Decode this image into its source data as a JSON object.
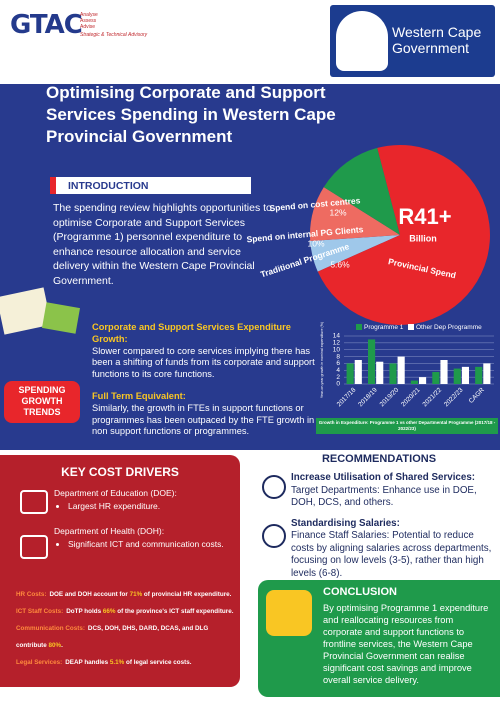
{
  "header": {
    "logo": "GTAC",
    "logo_tagline": [
      "Analyse",
      "Assess",
      "Advise"
    ],
    "logo_subtitle": "Strategic & Technical Advisory",
    "government": "Western Cape Government"
  },
  "title": "Optimising Corporate and Support Services Spending in Western Cape Provincial Government",
  "introduction": {
    "heading": "INTRODUCTION",
    "text": "The spending review highlights opportunities to optimise Corporate and Support Services (Programme 1) personnel expenditure to enhance resource allocation and service delivery within the Western Cape Provincial Government."
  },
  "pie_chart": {
    "type": "pie",
    "center_value": "R41+",
    "center_unit": "Billion",
    "categories": [
      "Traditional Programme",
      "Spend on internal PG Clients",
      "Spend on cost centres",
      "Provincial Spend"
    ],
    "values": [
      5.6,
      10,
      12,
      72.4
    ],
    "value_labels": [
      "5.6%",
      "10%",
      "12%",
      null
    ],
    "colors": [
      "#9fc8ea",
      "#ee6b61",
      "#1f9a4b",
      "#e8262b"
    ]
  },
  "spending_trends": {
    "badge": "SPENDING GROWTH TRENDS",
    "items": [
      {
        "heading": "Corporate and Support Services Expenditure Growth:",
        "text": "Slower compared to core services implying there has been a shifting of funds from its corporate and support functions to its core functions."
      },
      {
        "heading": "Full Term Equivalent:",
        "text": "Similarly, the growth in FTEs in support functions or programmes has been outpaced by the FTE growth in non support functions or programmes."
      }
    ]
  },
  "bar_chart": {
    "type": "bar",
    "y_label": "Year-on-year growth in nominal expenditure (%)",
    "caption": "Growth in Expenditure: Programme 1 vs other Departmental Programme (2017/18 - 2022/23)",
    "categories": [
      "2017/18",
      "2018/19",
      "2019/20",
      "2020/21",
      "2021/22",
      "2022/23",
      "CAGR"
    ],
    "series": [
      {
        "name": "Programme 1",
        "color": "#1f9a4b",
        "values": [
          6,
          13,
          6,
          1,
          3.5,
          4.5,
          5
        ]
      },
      {
        "name": "Other Dep Programme",
        "color": "#ffffff",
        "values": [
          7,
          6.5,
          8,
          2,
          7,
          5,
          6
        ]
      }
    ],
    "ylim": [
      0,
      14
    ],
    "yticks": [
      0,
      2,
      4,
      6,
      8,
      10,
      12,
      14
    ],
    "grid": true
  },
  "key_cost_drivers": {
    "heading": "KEY COST DRIVERS",
    "departments": [
      {
        "name": "Department of Education (DOE):",
        "bullets": [
          "Largest HR expenditure."
        ]
      },
      {
        "name": "Department of Health (DOH):",
        "bullets": [
          "Significant ICT and communication costs."
        ]
      }
    ],
    "notes": [
      {
        "label": "HR Costs:",
        "parts": [
          "DOE and DOH account for ",
          "71%",
          " of provincial HR expenditure."
        ]
      },
      {
        "label": "ICT Staff Costs:",
        "parts": [
          "DoTP holds ",
          "66%",
          " of the province's ICT staff expenditure."
        ]
      },
      {
        "label": "Communication Costs:",
        "parts": [
          "DCS, DOH, DHS, DARD, DCAS, and DLG contribute ",
          "80%",
          "."
        ]
      },
      {
        "label": "Legal Services:",
        "parts": [
          "DEAP handles ",
          "5.1%",
          " of legal service costs."
        ]
      }
    ]
  },
  "recommendations": {
    "heading": "RECOMMENDATIONS",
    "items": [
      {
        "heading": "Increase Utilisation of Shared Services:",
        "text": "Target Departments: Enhance use in DOE, DOH, DCS, and others."
      },
      {
        "heading": "Standardising Salaries:",
        "text": "Finance Staff Salaries: Potential to reduce costs by aligning salaries across departments, focusing on low levels (3-5), rather than high levels (6-8)."
      }
    ]
  },
  "conclusion": {
    "heading": "CONCLUSION",
    "text": "By optimising Programme 1 expenditure and reallocating resources from corporate and support functions to frontline services, the Western Cape Provincial Government can realise significant cost savings and improve overall service delivery."
  }
}
